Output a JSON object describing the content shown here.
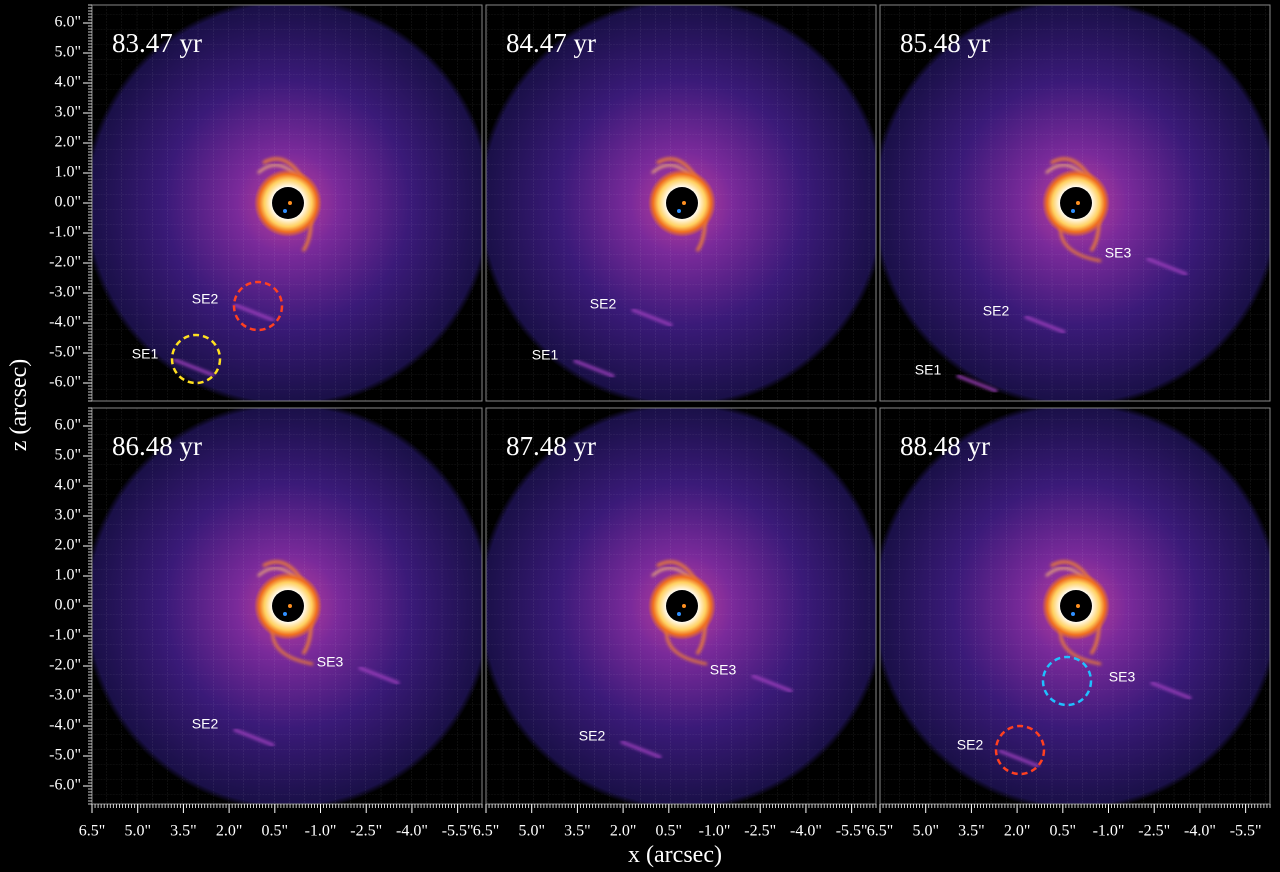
{
  "figure": {
    "xlabel": "x (arcsec)",
    "ylabel": "z (arcsec)",
    "xlim": [
      6.5,
      -6.3
    ],
    "ylim": [
      -6.6,
      6.6
    ],
    "xticks": [
      {
        "value": 6.5,
        "label": "6.5\""
      },
      {
        "value": 5.0,
        "label": "5.0\""
      },
      {
        "value": 3.5,
        "label": "3.5\""
      },
      {
        "value": 2.0,
        "label": "2.0\""
      },
      {
        "value": 0.5,
        "label": "0.5\""
      },
      {
        "value": -1.0,
        "label": "-1.0\""
      },
      {
        "value": -2.5,
        "label": "-2.5\""
      },
      {
        "value": -4.0,
        "label": "-4.0\""
      },
      {
        "value": -5.5,
        "label": "-5.5\""
      }
    ],
    "yticks": [
      {
        "value": 6,
        "label": "6.0\""
      },
      {
        "value": 5,
        "label": "5.0\""
      },
      {
        "value": 4,
        "label": "4.0\""
      },
      {
        "value": 3,
        "label": "3.0\""
      },
      {
        "value": 2,
        "label": "2.0\""
      },
      {
        "value": 1,
        "label": "1.0\""
      },
      {
        "value": 0,
        "label": "0.0\""
      },
      {
        "value": -1,
        "label": "-1.0\""
      },
      {
        "value": -2,
        "label": "-2.0\""
      },
      {
        "value": -3,
        "label": "-3.0\""
      },
      {
        "value": -4,
        "label": "-4.0\""
      },
      {
        "value": -5,
        "label": "-5.0\""
      },
      {
        "value": -6,
        "label": "-6.0\""
      }
    ],
    "panels": [
      {
        "title": "83.47 yr",
        "features": [
          "SE2",
          "SE1"
        ]
      },
      {
        "title": "84.47 yr",
        "features": [
          "SE2",
          "SE1"
        ]
      },
      {
        "title": "85.48 yr",
        "features": [
          "SE3",
          "SE2",
          "SE1"
        ]
      },
      {
        "title": "86.48 yr",
        "features": [
          "SE3",
          "SE2"
        ]
      },
      {
        "title": "87.48 yr",
        "features": [
          "SE3",
          "SE2"
        ]
      },
      {
        "title": "88.48 yr",
        "features": [
          "SE3",
          "SE2"
        ]
      }
    ]
  }
}
